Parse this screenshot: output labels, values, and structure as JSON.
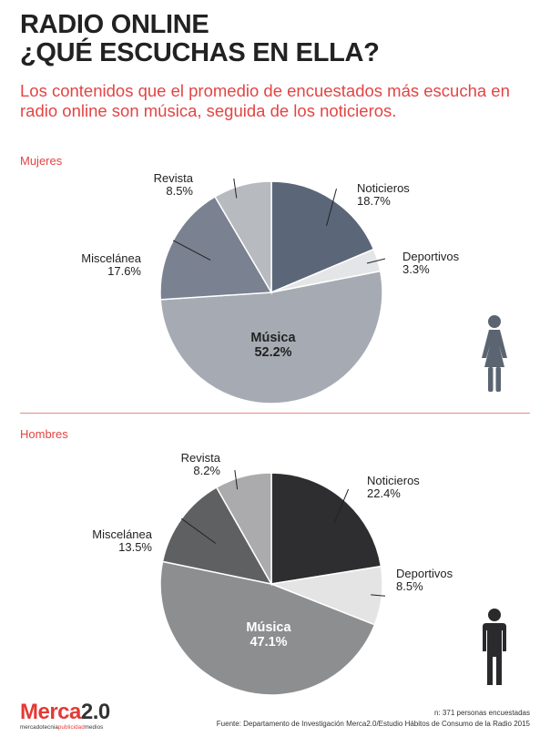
{
  "header": {
    "title_line1": "RADIO ONLINE",
    "title_line2": "¿QUÉ ESCUCHAS EN ELLA?",
    "subtitle": "Los contenidos que el promedio de encuestados más escucha en radio online son música, seguida de los noticieros."
  },
  "colors": {
    "accent": "#e44444"
  },
  "chart_data": [
    {
      "type": "pie",
      "title": "Mujeres",
      "categories": [
        "Noticieros",
        "Deportivos",
        "Música",
        "Miscelánea",
        "Revista"
      ],
      "values": [
        18.7,
        3.3,
        52.2,
        17.6,
        8.5
      ],
      "value_labels": [
        "18.7%",
        "3.3%",
        "52.2%",
        "17.6%",
        "8.5%"
      ],
      "colors": [
        "#5b6778",
        "#e4e5e7",
        "#a6abb3",
        "#7a8190",
        "#b7babf"
      ],
      "icon": "woman-icon"
    },
    {
      "type": "pie",
      "title": "Hombres",
      "categories": [
        "Noticieros",
        "Deportivos",
        "Música",
        "Miscelánea",
        "Revista"
      ],
      "values": [
        22.4,
        8.5,
        47.1,
        13.5,
        8.2
      ],
      "value_labels": [
        "22.4%",
        "8.5%",
        "47.1%",
        "13.5%",
        "8.2%"
      ],
      "colors": [
        "#2e2e30",
        "#e4e4e4",
        "#8d8e90",
        "#5f6062",
        "#ababad"
      ],
      "icon": "man-icon"
    }
  ],
  "footer": {
    "logo_prefix": "Merca",
    "logo_version": "2.0",
    "logo_tag_a": "mercadotecnia",
    "logo_tag_b": "publicidad",
    "logo_tag_c": "medios",
    "sample": "n: 371 personas encuestadas",
    "source": "Fuente: Departamento de Investigación Merca2.0/Estudio Hábitos de Consumo de la Radio 2015"
  }
}
